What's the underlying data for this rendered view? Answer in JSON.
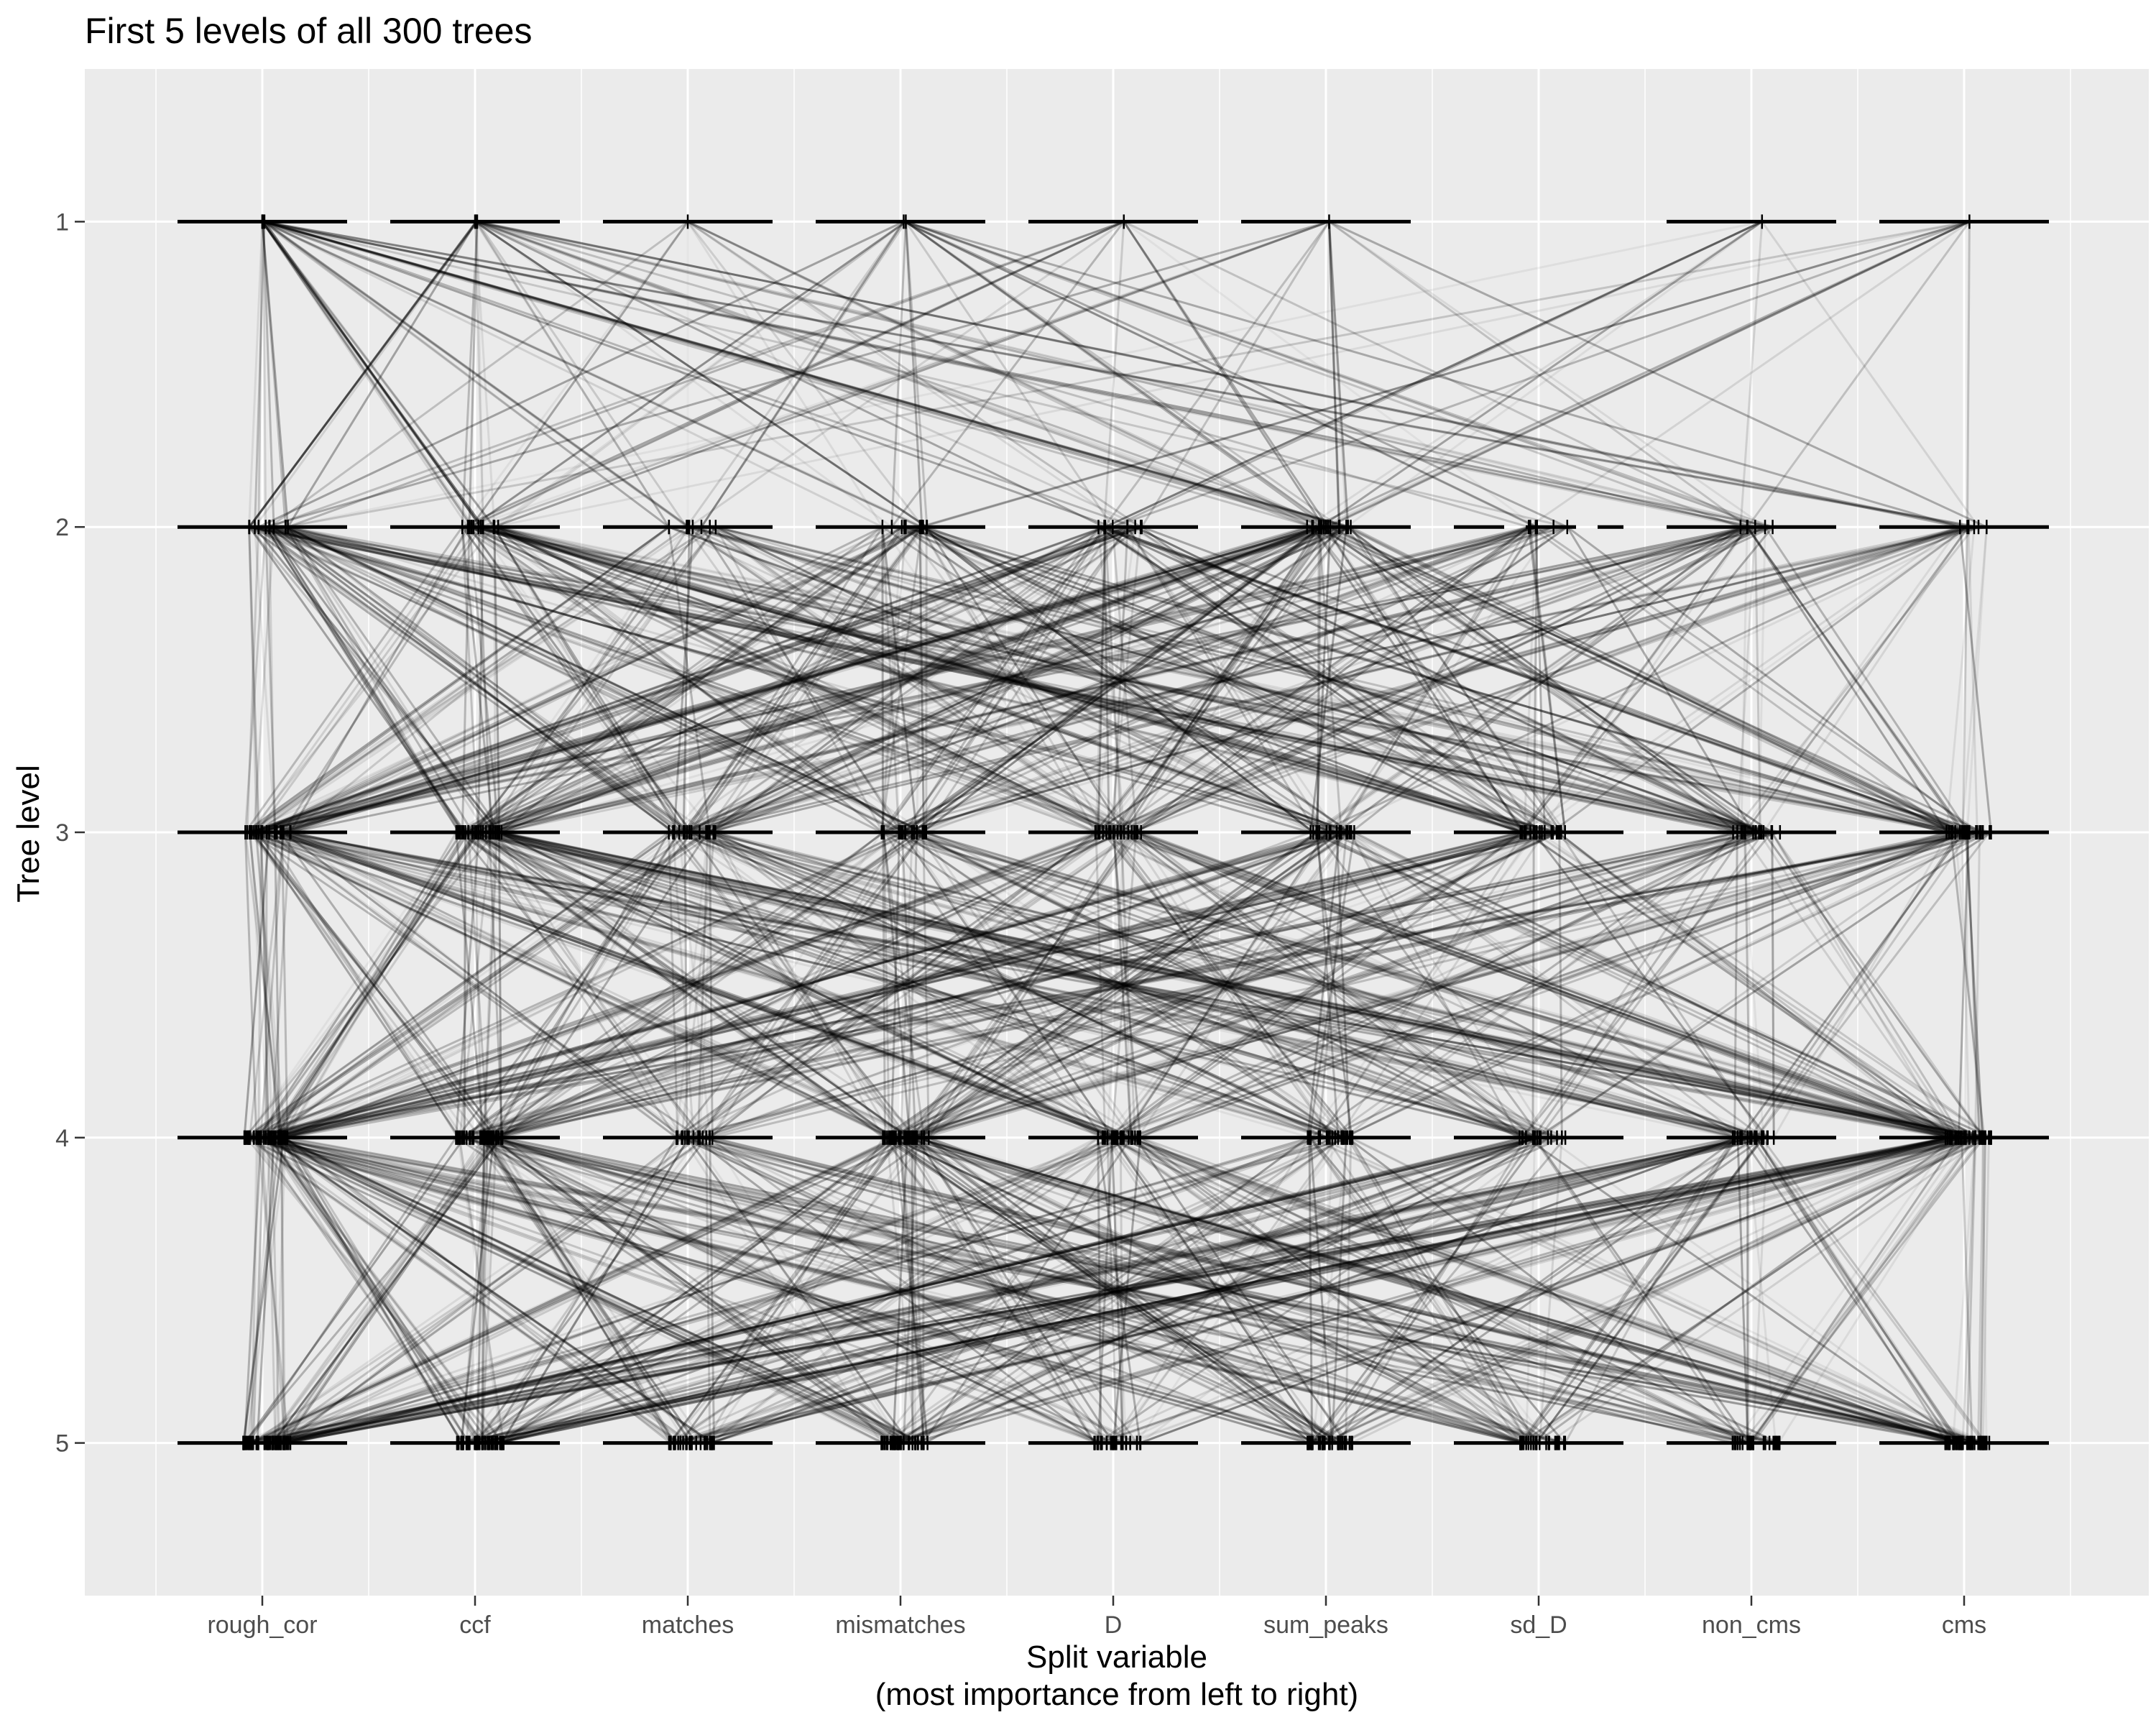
{
  "chart_data": {
    "type": "line",
    "title": "First 5 levels of all 300 trees",
    "xlabel_line1": "Split variable",
    "xlabel_line2": "(most importance from left to right)",
    "ylabel": "Tree level",
    "categories": [
      "rough_cor",
      "ccf",
      "matches",
      "mismatches",
      "D",
      "sum_peaks",
      "sd_D",
      "non_cms",
      "cms"
    ],
    "levels": [
      "1",
      "2",
      "3",
      "4",
      "5"
    ],
    "ylim": [
      0.5,
      5.5
    ],
    "y_reversed": true,
    "grid": true,
    "legend": "none",
    "level1_nodes": {
      "rough_cor": [
        0.02,
        0.0,
        0.01,
        0.0
      ],
      "ccf": [
        0.0,
        0.01,
        0.02
      ],
      "matches": [
        0.0
      ],
      "mismatches": [
        0.05,
        0.03
      ],
      "D": [
        0.1
      ],
      "sum_peaks": [
        0.03
      ],
      "non_cms": [
        0.1
      ],
      "cms": [
        0.05
      ]
    },
    "colors": {
      "panel": "#ebebeb",
      "grid_major": "#ffffff",
      "line": "#000000",
      "tick_text": "#4d4d4d"
    }
  }
}
